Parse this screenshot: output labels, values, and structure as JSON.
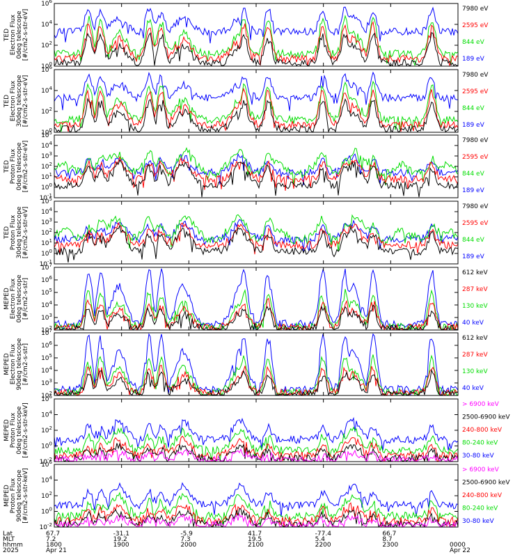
{
  "colors": {
    "blue": "#0000ff",
    "red": "#ff0000",
    "green": "#00dd00",
    "black": "#000000",
    "magenta": "#ff00ff"
  },
  "footer": {
    "row_labels": [
      "Lat",
      "MLT",
      "hhmm",
      "2025"
    ],
    "columns": [
      {
        "lat": "67.7",
        "mlt": "7.2",
        "hhmm": "1800",
        "date": "Apr 21"
      },
      {
        "lat": "-31.1",
        "mlt": "19.2",
        "hhmm": "1900",
        "date": ""
      },
      {
        "lat": "-5.9",
        "mlt": "7.3",
        "hhmm": "2000",
        "date": ""
      },
      {
        "lat": "41.7",
        "mlt": "19.5",
        "hhmm": "2100",
        "date": ""
      },
      {
        "lat": "-77.4",
        "mlt": "5.4",
        "hhmm": "2200",
        "date": ""
      },
      {
        "lat": "66.7",
        "mlt": "8.7",
        "hhmm": "2300",
        "date": ""
      },
      {
        "lat": "",
        "mlt": "",
        "hhmm": "0000",
        "date": "Apr 22"
      }
    ]
  },
  "chart_data": [
    {
      "type": "line",
      "instrument": "TED",
      "ylabel": [
        "TED",
        "Electron Flux",
        "0deg telescope",
        "[#/cm2-s-str-eV]"
      ],
      "ylim": [
        1,
        1000000
      ],
      "ytick_labels": [
        "10^0",
        "10^2",
        "10^4",
        "10^6"
      ],
      "series": [
        {
          "name": "7980 eV",
          "color": "black"
        },
        {
          "name": "2595 eV",
          "color": "red"
        },
        {
          "name": "844 eV",
          "color": "green"
        },
        {
          "name": "189 eV",
          "color": "blue"
        }
      ]
    },
    {
      "type": "line",
      "instrument": "TED",
      "ylabel": [
        "TED",
        "Electron Flux",
        "30deg telescope",
        "[#/cm2-s-str-eV]"
      ],
      "ylim": [
        1,
        1000000
      ],
      "ytick_labels": [
        "10^0",
        "10^2",
        "10^4",
        "10^6"
      ],
      "series": [
        {
          "name": "7980 eV",
          "color": "black"
        },
        {
          "name": "2595 eV",
          "color": "red"
        },
        {
          "name": "844 eV",
          "color": "green"
        },
        {
          "name": "189 eV",
          "color": "blue"
        }
      ]
    },
    {
      "type": "line",
      "instrument": "TED",
      "ylabel": [
        "TED",
        "Proton Flux",
        "0deg telescope",
        "[#/cm2-s-str-eV]"
      ],
      "ylim": [
        0.1,
        100000
      ],
      "ytick_labels": [
        "10^-1",
        "10^0",
        "10^1",
        "10^2",
        "10^3",
        "10^4",
        "10^5"
      ],
      "series": [
        {
          "name": "7980 eV",
          "color": "black"
        },
        {
          "name": "2595 eV",
          "color": "red"
        },
        {
          "name": "844 eV",
          "color": "green"
        },
        {
          "name": "189 eV",
          "color": "blue"
        }
      ]
    },
    {
      "type": "line",
      "instrument": "TED",
      "ylabel": [
        "TED",
        "Proton Flux",
        "30deg telescope",
        "[#/cm2-s-str-eV]"
      ],
      "ylim": [
        0.1,
        100000
      ],
      "ytick_labels": [
        "10^-1",
        "10^0",
        "10^1",
        "10^2",
        "10^3",
        "10^4",
        "10^5"
      ],
      "series": [
        {
          "name": "7980 eV",
          "color": "black"
        },
        {
          "name": "2595 eV",
          "color": "red"
        },
        {
          "name": "844 eV",
          "color": "green"
        },
        {
          "name": "189 eV",
          "color": "blue"
        }
      ]
    },
    {
      "type": "line",
      "instrument": "MEPED",
      "ylabel": [
        "MEPED",
        "Electron Flux",
        "0deg telescope",
        "[#/cm2-s-str]"
      ],
      "ylim": [
        100,
        10000000
      ],
      "ytick_labels": [
        "10^2",
        "10^3",
        "10^4",
        "10^5",
        "10^6",
        "10^7"
      ],
      "series": [
        {
          "name": "612 keV",
          "color": "black"
        },
        {
          "name": "287 keV",
          "color": "red"
        },
        {
          "name": "130 keV",
          "color": "green"
        },
        {
          "name": "40 keV",
          "color": "blue"
        }
      ]
    },
    {
      "type": "line",
      "instrument": "MEPED",
      "ylabel": [
        "MEPED",
        "Electron Flux",
        "90deg telescope",
        "[#/cm2-s-str]"
      ],
      "ylim": [
        100,
        10000000
      ],
      "ytick_labels": [
        "10^2",
        "10^3",
        "10^4",
        "10^5",
        "10^6",
        "10^7"
      ],
      "series": [
        {
          "name": "612 keV",
          "color": "black"
        },
        {
          "name": "287 keV",
          "color": "red"
        },
        {
          "name": "130 keV",
          "color": "green"
        },
        {
          "name": "40 keV",
          "color": "blue"
        }
      ]
    },
    {
      "type": "line",
      "instrument": "MEPED",
      "ylabel": [
        "MEPED",
        "Proton Flux",
        "0deg telescope",
        "[#/cm2-s-str-keV]"
      ],
      "ylim": [
        0.01,
        1000000
      ],
      "ytick_labels": [
        "10^-2",
        "10^0",
        "10^2",
        "10^4",
        "10^6"
      ],
      "series": [
        {
          "name": "> 6900 keV",
          "color": "magenta"
        },
        {
          "name": "2500-6900 keV",
          "color": "black"
        },
        {
          "name": "240-800 keV",
          "color": "red"
        },
        {
          "name": "80-240 keV",
          "color": "green"
        },
        {
          "name": "30-80 keV",
          "color": "blue"
        }
      ]
    },
    {
      "type": "line",
      "instrument": "MEPED",
      "ylabel": [
        "MEPED",
        "Proton Flux",
        "90deg telescope",
        "[#/cm2-s-str-keV]"
      ],
      "ylim": [
        0.01,
        1000000
      ],
      "ytick_labels": [
        "10^-2",
        "10^0",
        "10^2",
        "10^4",
        "10^6"
      ],
      "series": [
        {
          "name": "> 6900 keV",
          "color": "magenta"
        },
        {
          "name": "2500-6900 keV",
          "color": "black"
        },
        {
          "name": "240-800 keV",
          "color": "red"
        },
        {
          "name": "80-240 keV",
          "color": "green"
        },
        {
          "name": "30-80 keV",
          "color": "blue"
        }
      ]
    }
  ]
}
